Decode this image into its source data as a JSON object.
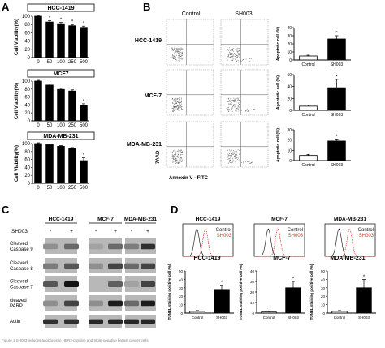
{
  "panel_labels": {
    "A": "A",
    "B": "B",
    "C": "C",
    "D": "D"
  },
  "chart_data": [
    {
      "id": "A1",
      "type": "bar",
      "title": "HCC-1419",
      "ylabel": "Cell Viability(%)",
      "categories": [
        "0",
        "50",
        "100",
        "250",
        "500"
      ],
      "values": [
        100,
        86,
        82,
        77,
        73
      ],
      "errors": [
        2,
        3,
        3,
        3,
        3
      ],
      "yticks": [
        "0",
        "20",
        "40",
        "60",
        "80",
        "100"
      ],
      "ylim": [
        0,
        100
      ],
      "annotations": [
        "",
        "*",
        "*",
        "*",
        "*"
      ]
    },
    {
      "id": "A2",
      "type": "bar",
      "title": "MCF7",
      "ylabel": "Cell Viability(%)",
      "categories": [
        "0",
        "50",
        "100",
        "250",
        "500"
      ],
      "values": [
        100,
        90,
        79,
        75,
        38
      ],
      "errors": [
        2,
        3,
        3,
        3,
        5
      ],
      "yticks": [
        "0",
        "20",
        "40",
        "60",
        "80",
        "100"
      ],
      "ylim": [
        0,
        100
      ],
      "annotations": [
        "",
        "",
        "",
        "",
        "*"
      ]
    },
    {
      "id": "A3",
      "type": "bar",
      "title": "MDA-MB-231",
      "ylabel": "Cell Viability(%)",
      "categories": [
        "0",
        "50",
        "100",
        "250",
        "500"
      ],
      "values": [
        100,
        97,
        93,
        87,
        57
      ],
      "errors": [
        2,
        2,
        2,
        3,
        7
      ],
      "yticks": [
        "0",
        "20",
        "40",
        "60",
        "80",
        "100"
      ],
      "ylim": [
        0,
        100
      ],
      "annotations": [
        "",
        "",
        "",
        "",
        "*"
      ]
    },
    {
      "id": "B1",
      "type": "bar",
      "title": "",
      "ylabel": "Apoptotic cell (%)",
      "categories": [
        "Control",
        "SH003"
      ],
      "values": [
        5,
        26
      ],
      "errors": [
        1,
        4
      ],
      "yticks": [
        "0",
        "10",
        "20",
        "30",
        "40"
      ],
      "ylim": [
        0,
        40
      ],
      "annotations": [
        "",
        "*"
      ]
    },
    {
      "id": "B2",
      "type": "bar",
      "title": "",
      "ylabel": "Apoptotic cell (%)",
      "categories": [
        "Control",
        "SH003"
      ],
      "values": [
        7,
        38
      ],
      "errors": [
        2,
        14
      ],
      "yticks": [
        "0",
        "20",
        "40",
        "60"
      ],
      "ylim": [
        0,
        60
      ],
      "annotations": [
        "",
        "*"
      ]
    },
    {
      "id": "B3",
      "type": "bar",
      "title": "",
      "ylabel": "Apoptotic cell (%)",
      "categories": [
        "Control",
        "SH003"
      ],
      "values": [
        5,
        19
      ],
      "errors": [
        1,
        2
      ],
      "yticks": [
        "0",
        "10",
        "20",
        "30"
      ],
      "ylim": [
        0,
        30
      ],
      "annotations": [
        "",
        "*"
      ]
    },
    {
      "id": "D1",
      "type": "bar",
      "title": "HCC-1419",
      "ylabel": "TUNEL staining positive cell (%)",
      "categories": [
        "Control",
        "SH003"
      ],
      "values": [
        2,
        28
      ],
      "errors": [
        1,
        5
      ],
      "yticks": [
        "0",
        "10",
        "20",
        "30",
        "40",
        "50"
      ],
      "ylim": [
        0,
        50
      ],
      "annotations": [
        "",
        "*"
      ]
    },
    {
      "id": "D2",
      "type": "bar",
      "title": "MCF-7",
      "ylabel": "TUNEL staining positive cell (%)",
      "categories": [
        "Control",
        "SH003"
      ],
      "values": [
        1,
        24
      ],
      "errors": [
        1,
        6
      ],
      "yticks": [
        "0",
        "10",
        "20",
        "30",
        "40"
      ],
      "ylim": [
        0,
        40
      ],
      "annotations": [
        "",
        "*"
      ]
    },
    {
      "id": "D3",
      "type": "bar",
      "title": "MDA-MB-231",
      "ylabel": "TUNEL staining positive cell (%)",
      "categories": [
        "Control",
        "SH003"
      ],
      "values": [
        2,
        30
      ],
      "errors": [
        1,
        10
      ],
      "yticks": [
        "0",
        "10",
        "20",
        "30",
        "40",
        "50"
      ],
      "ylim": [
        0,
        50
      ],
      "annotations": [
        "",
        "*"
      ]
    }
  ],
  "panel_b": {
    "col_labels": [
      "Control",
      "SH003"
    ],
    "row_labels": [
      "HCC-1419",
      "MCF-7",
      "MDA-MB-231"
    ],
    "y_axis": "7AAD",
    "x_axis": "Annexin V - FITC"
  },
  "panel_c": {
    "cell_lines": [
      "HCC-1419",
      "MCF-7",
      "MDA-MB-231"
    ],
    "treatment_label": "SH003",
    "treatment_marks": [
      "-",
      "+",
      "-",
      "+",
      "-",
      "+"
    ],
    "rows": [
      "Cleaved\nCaspase 9",
      "Cleaved\nCaspase 8",
      "Cleaved\nCaspase 7",
      "cleaved\nPARP",
      "Actin"
    ]
  },
  "panel_d": {
    "cell_lines": [
      "HCC-1419",
      "MCF-7",
      "MDA-MB-231"
    ],
    "legend": [
      "Control",
      "SH003"
    ],
    "legend_colors": [
      "#222222",
      "#d0302a"
    ]
  },
  "caption": "Figure 1 SH003 induces apoptosis in HER2-positive and triple-negative breast cancer cells"
}
